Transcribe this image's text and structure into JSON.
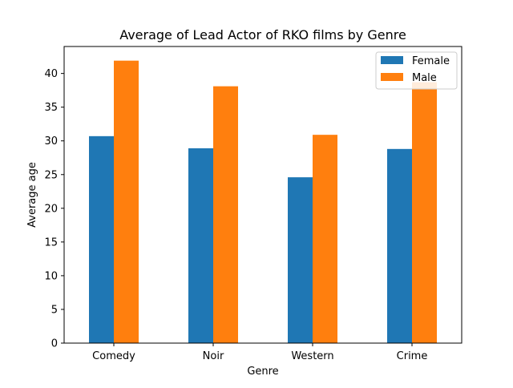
{
  "chart_data": {
    "type": "bar",
    "title": "Average of Lead Actor of RKO films by Genre",
    "xlabel": "Genre",
    "ylabel": "Average age",
    "categories": [
      "Comedy",
      "Noir",
      "Western",
      "Crime"
    ],
    "series": [
      {
        "name": "Female",
        "values": [
          30.7,
          28.9,
          24.6,
          28.8
        ],
        "color": "#1f77b4"
      },
      {
        "name": "Male",
        "values": [
          41.9,
          38.1,
          30.9,
          38.7
        ],
        "color": "#ff7f0e"
      }
    ],
    "ylim": [
      0,
      44
    ],
    "yticks": [
      0,
      5,
      10,
      15,
      20,
      25,
      30,
      35,
      40
    ],
    "grid": false,
    "legend_position": "top-right"
  }
}
